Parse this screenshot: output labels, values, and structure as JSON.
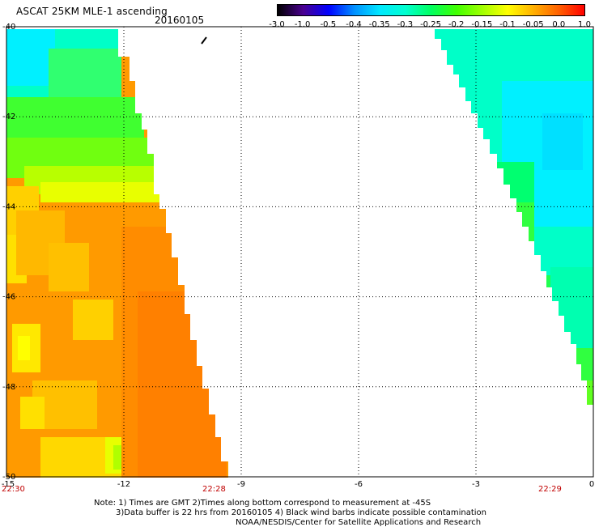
{
  "header": {
    "title": "ASCAT 25KM MLE-1 ascending",
    "date": "20160105"
  },
  "colorbar": {
    "labels": [
      "-3.0",
      "-1.0",
      "-0.5",
      "-0.4",
      "-0.35",
      "-0.3",
      "-0.25",
      "-0.2",
      "-0.15",
      "-0.1",
      "-0.05",
      "0.0",
      "1.0"
    ],
    "colors": [
      "#000000",
      "#4a0090",
      "#0000ff",
      "#0090ff",
      "#00e8ff",
      "#00ffd0",
      "#00ff60",
      "#40ff00",
      "#a0ff00",
      "#ffff00",
      "#ffb000",
      "#ff6000",
      "#ff0000"
    ]
  },
  "axes": {
    "y_ticks": [
      "-40",
      "-42",
      "-44",
      "-46",
      "-48",
      "-50"
    ],
    "x_ticks": [
      "-15",
      "-12",
      "-9",
      "-6",
      "-3",
      "0"
    ],
    "lat_range": [
      -50,
      -40
    ],
    "lon_range": [
      -15,
      0
    ]
  },
  "times": {
    "bottom_left": "22:30",
    "mid": "22:28",
    "right": "22:29"
  },
  "notes": {
    "line1": "Note: 1) Times are GMT 2)Times along bottom correspond to measurement at -45S",
    "line2": "3)Data buffer is 22 hrs from 20160105 4) Black wind barbs indicate possible contamination",
    "line3": "NOAA/NESDIS/Center for Satellite Applications and Research"
  }
}
